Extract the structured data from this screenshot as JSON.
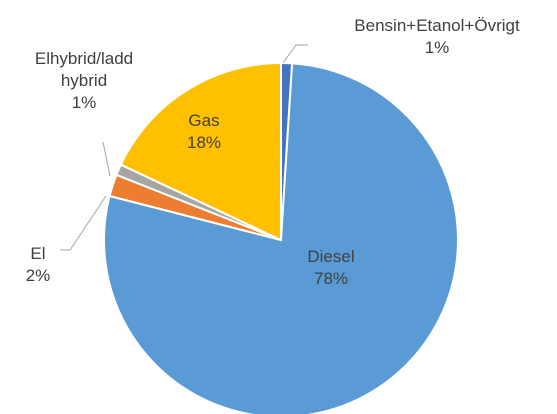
{
  "chart_data": {
    "type": "pie",
    "categories": [
      "Bensin+Etanol+Övrigt",
      "Diesel",
      "El",
      "Elhybrid/ladd hybrid",
      "Gas"
    ],
    "values": [
      1,
      78,
      2,
      1,
      18
    ],
    "value_labels": [
      "1%",
      "78%",
      "2%",
      "1%",
      "18%"
    ],
    "colors": [
      "#4472c4",
      "#5b9bd5",
      "#ed7d31",
      "#a5a5a5",
      "#ffc000"
    ]
  }
}
